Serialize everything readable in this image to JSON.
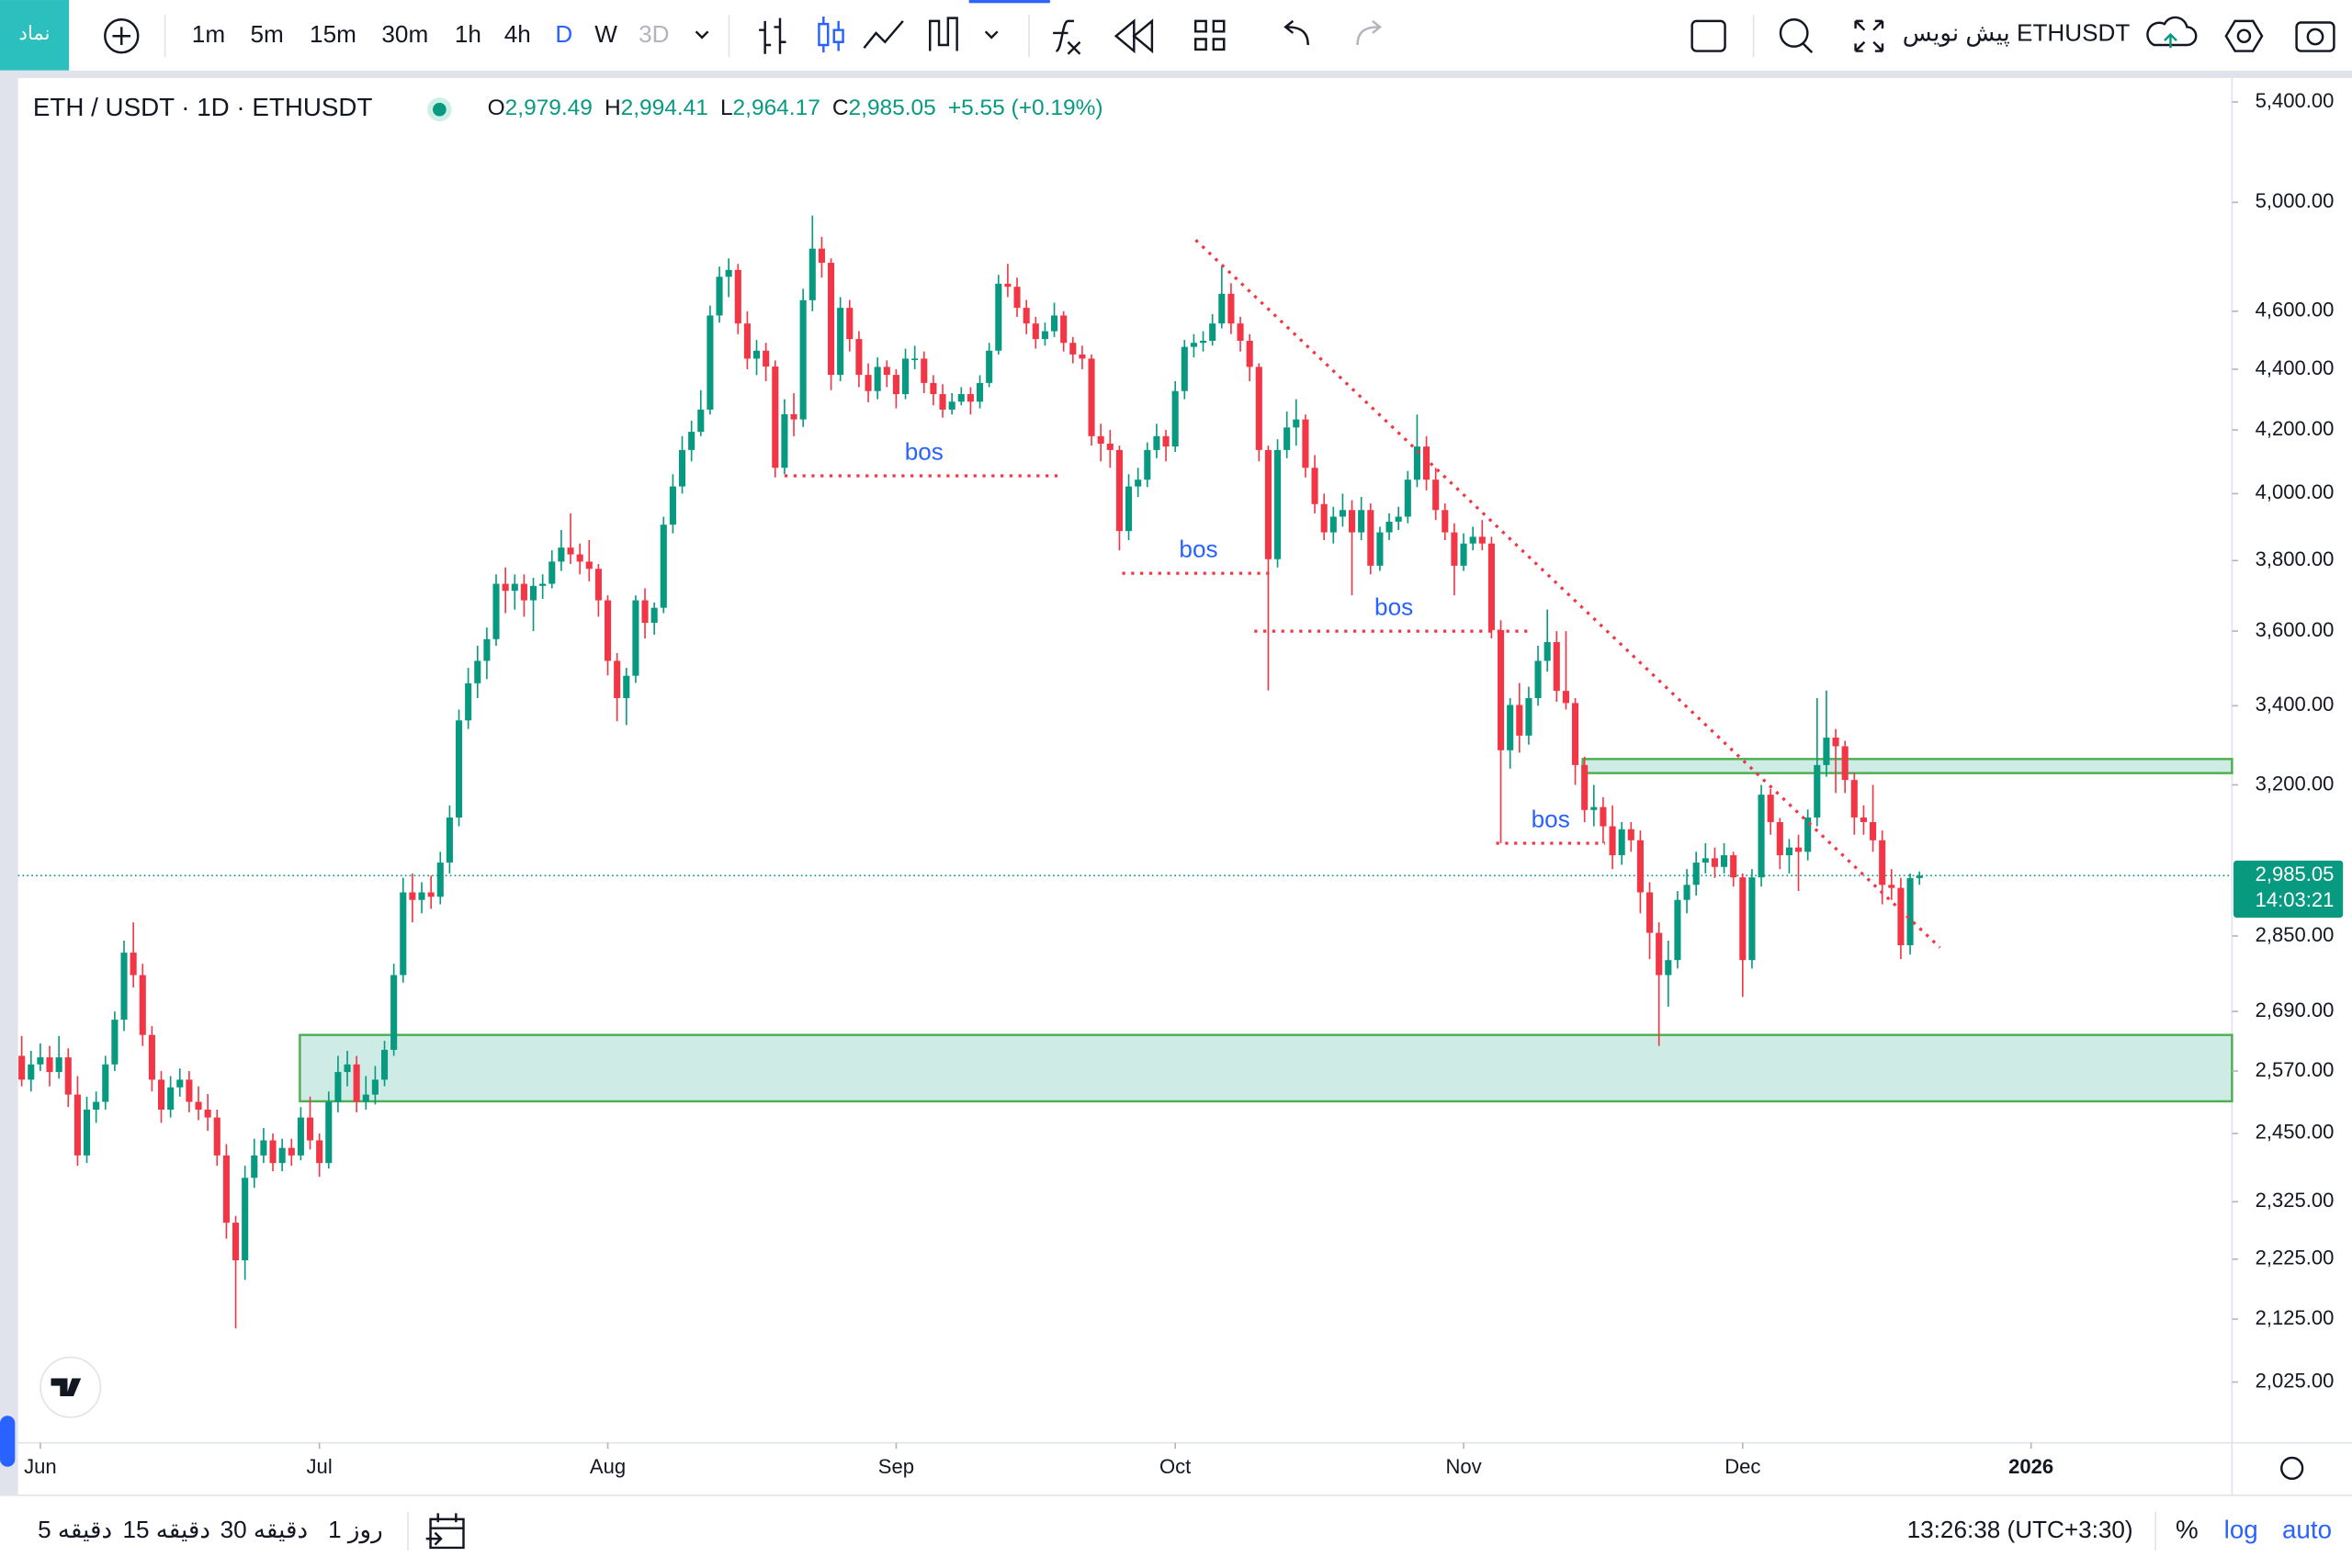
{
  "toolbar": {
    "symbol_button": "نماد",
    "intervals": [
      "1m",
      "5m",
      "15m",
      "30m",
      "1h",
      "4h",
      "D",
      "W",
      "3D"
    ],
    "draft": "پیش نویس ETHUSDT"
  },
  "bottom_bar": {
    "ranges": [
      "5 دقیقه",
      "15 دقیقه",
      "30 دقیقه",
      "1 روز"
    ],
    "clock": "13:26:38 (UTC+3:30)",
    "percent": "%",
    "log": "log",
    "auto": "auto"
  },
  "chart_data": {
    "type": "candlestick",
    "title": "ETH / USDT · 1D · ETHUSDT",
    "ohlc_keys": [
      "O",
      "H",
      "L",
      "C"
    ],
    "ohlc_labels": [
      "2,979.49",
      "2,994.41",
      "2,964.17",
      "2,985.05"
    ],
    "change": "+5.55 (+0.19%)",
    "last_price": 2985.05,
    "last_price_label": "2,985.05",
    "countdown": "14:03:21",
    "up_color": "#089981",
    "down_color": "#f23645",
    "log_scale": true,
    "grid": false,
    "ylim": [
      1933,
      5500
    ],
    "xlim": [
      -0.4,
      237.6
    ],
    "yticks": [
      {
        "value": 2025,
        "label": "2,025.00"
      },
      {
        "value": 2125,
        "label": "2,125.00"
      },
      {
        "value": 2225,
        "label": "2,225.00"
      },
      {
        "value": 2325,
        "label": "2,325.00"
      },
      {
        "value": 2450,
        "label": "2,450.00"
      },
      {
        "value": 2570,
        "label": "2,570.00"
      },
      {
        "value": 2690,
        "label": "2,690.00"
      },
      {
        "value": 2850,
        "label": "2,850.00"
      },
      {
        "value": 3200,
        "label": "3,200.00"
      },
      {
        "value": 3400,
        "label": "3,400.00"
      },
      {
        "value": 3600,
        "label": "3,600.00"
      },
      {
        "value": 3800,
        "label": "3,800.00"
      },
      {
        "value": 4000,
        "label": "4,000.00"
      },
      {
        "value": 4200,
        "label": "4,200.00"
      },
      {
        "value": 4400,
        "label": "4,400.00"
      },
      {
        "value": 4600,
        "label": "4,600.00"
      },
      {
        "value": 5000,
        "label": "5,000.00"
      },
      {
        "value": 5400,
        "label": "5,400.00"
      }
    ],
    "xticks": [
      {
        "value": 2,
        "label": "Jun"
      },
      {
        "value": 32,
        "label": "Jul"
      },
      {
        "value": 63,
        "label": "Aug"
      },
      {
        "value": 94,
        "label": "Sep"
      },
      {
        "value": 124,
        "label": "Oct"
      },
      {
        "value": 155,
        "label": "Nov"
      },
      {
        "value": 185,
        "label": "Dec"
      },
      {
        "value": 216,
        "label": "2026"
      }
    ],
    "zones": [
      {
        "x0": 29.9,
        "top": 2642,
        "bottom": 2511
      },
      {
        "x0": 167.8,
        "top": 3264,
        "bottom": 3229
      }
    ],
    "trendline": {
      "x": [
        126.2,
        206.2
      ],
      "y": [
        4858,
        2825
      ]
    },
    "bos": [
      {
        "text": "bos",
        "price": 4055,
        "x0": 82,
        "x1": 112
      },
      {
        "text": "bos",
        "price": 3763,
        "x0": 118.3,
        "x1": 134.7
      },
      {
        "text": "bos",
        "price": 3600,
        "x0": 132.5,
        "x1": 162.5
      },
      {
        "text": "bos",
        "price": 3060,
        "x0": 158.5,
        "x1": 170.2
      }
    ],
    "candles": [
      [
        2600,
        2640,
        2540,
        2553
      ],
      [
        2553,
        2610,
        2530,
        2583
      ],
      [
        2583,
        2625,
        2570,
        2597
      ],
      [
        2597,
        2620,
        2540,
        2568
      ],
      [
        2568,
        2640,
        2555,
        2597
      ],
      [
        2597,
        2615,
        2500,
        2524
      ],
      [
        2524,
        2560,
        2390,
        2409
      ],
      [
        2409,
        2520,
        2395,
        2495
      ],
      [
        2495,
        2530,
        2470,
        2510
      ],
      [
        2510,
        2600,
        2495,
        2583
      ],
      [
        2583,
        2690,
        2570,
        2673
      ],
      [
        2673,
        2840,
        2650,
        2814
      ],
      [
        2814,
        2880,
        2740,
        2766
      ],
      [
        2766,
        2790,
        2620,
        2642
      ],
      [
        2642,
        2660,
        2530,
        2553
      ],
      [
        2553,
        2570,
        2470,
        2495
      ],
      [
        2495,
        2560,
        2480,
        2538
      ],
      [
        2538,
        2575,
        2520,
        2553
      ],
      [
        2553,
        2570,
        2490,
        2510
      ],
      [
        2510,
        2540,
        2475,
        2495
      ],
      [
        2495,
        2525,
        2455,
        2480
      ],
      [
        2480,
        2495,
        2390,
        2409
      ],
      [
        2409,
        2430,
        2260,
        2288
      ],
      [
        2288,
        2300,
        2110,
        2223
      ],
      [
        2223,
        2390,
        2190,
        2368
      ],
      [
        2368,
        2440,
        2350,
        2409
      ],
      [
        2409,
        2460,
        2395,
        2437
      ],
      [
        2437,
        2450,
        2380,
        2395
      ],
      [
        2395,
        2440,
        2380,
        2423
      ],
      [
        2423,
        2440,
        2390,
        2409
      ],
      [
        2409,
        2500,
        2400,
        2480
      ],
      [
        2480,
        2520,
        2420,
        2437
      ],
      [
        2437,
        2450,
        2370,
        2395
      ],
      [
        2395,
        2530,
        2385,
        2510
      ],
      [
        2510,
        2600,
        2490,
        2568
      ],
      [
        2568,
        2610,
        2540,
        2583
      ],
      [
        2583,
        2600,
        2490,
        2510
      ],
      [
        2510,
        2560,
        2495,
        2524
      ],
      [
        2524,
        2580,
        2505,
        2553
      ],
      [
        2553,
        2630,
        2540,
        2612
      ],
      [
        2612,
        2790,
        2600,
        2766
      ],
      [
        2766,
        2980,
        2750,
        2947
      ],
      [
        2947,
        2990,
        2880,
        2930
      ],
      [
        2930,
        2970,
        2900,
        2947
      ],
      [
        2947,
        2985,
        2910,
        2937
      ],
      [
        2937,
        3040,
        2920,
        3015
      ],
      [
        3015,
        3150,
        2990,
        3121
      ],
      [
        3121,
        3390,
        3100,
        3362
      ],
      [
        3362,
        3500,
        3340,
        3459
      ],
      [
        3459,
        3560,
        3420,
        3519
      ],
      [
        3519,
        3610,
        3470,
        3578
      ],
      [
        3578,
        3760,
        3560,
        3733
      ],
      [
        3733,
        3780,
        3650,
        3713
      ],
      [
        3713,
        3760,
        3660,
        3733
      ],
      [
        3733,
        3760,
        3640,
        3686
      ],
      [
        3686,
        3750,
        3600,
        3727
      ],
      [
        3727,
        3760,
        3690,
        3733
      ],
      [
        3733,
        3830,
        3720,
        3797
      ],
      [
        3797,
        3890,
        3770,
        3838
      ],
      [
        3838,
        3940,
        3790,
        3818
      ],
      [
        3818,
        3850,
        3760,
        3797
      ],
      [
        3797,
        3860,
        3740,
        3776
      ],
      [
        3776,
        3790,
        3640,
        3686
      ],
      [
        3686,
        3700,
        3480,
        3519
      ],
      [
        3519,
        3540,
        3360,
        3420
      ],
      [
        3420,
        3500,
        3350,
        3479
      ],
      [
        3479,
        3700,
        3460,
        3686
      ],
      [
        3686,
        3720,
        3580,
        3623
      ],
      [
        3623,
        3680,
        3590,
        3665
      ],
      [
        3665,
        3930,
        3650,
        3906
      ],
      [
        3906,
        4060,
        3880,
        4022
      ],
      [
        4022,
        4180,
        4000,
        4136
      ],
      [
        4136,
        4230,
        4100,
        4194
      ],
      [
        4194,
        4330,
        4180,
        4266
      ],
      [
        4266,
        4620,
        4250,
        4585
      ],
      [
        4585,
        4760,
        4560,
        4723
      ],
      [
        4723,
        4790,
        4650,
        4748
      ],
      [
        4748,
        4770,
        4520,
        4557
      ],
      [
        4557,
        4600,
        4400,
        4436
      ],
      [
        4436,
        4500,
        4380,
        4463
      ],
      [
        4463,
        4490,
        4360,
        4409
      ],
      [
        4409,
        4430,
        4050,
        4080
      ],
      [
        4080,
        4300,
        4060,
        4251
      ],
      [
        4251,
        4320,
        4180,
        4234
      ],
      [
        4234,
        4680,
        4210,
        4639
      ],
      [
        4639,
        4950,
        4600,
        4826
      ],
      [
        4826,
        4870,
        4720,
        4774
      ],
      [
        4774,
        4790,
        4330,
        4381
      ],
      [
        4381,
        4650,
        4360,
        4612
      ],
      [
        4612,
        4640,
        4460,
        4503
      ],
      [
        4503,
        4530,
        4340,
        4381
      ],
      [
        4381,
        4420,
        4290,
        4327
      ],
      [
        4327,
        4440,
        4300,
        4408
      ],
      [
        4408,
        4430,
        4340,
        4381
      ],
      [
        4381,
        4400,
        4270,
        4317
      ],
      [
        4317,
        4470,
        4300,
        4436
      ],
      [
        4436,
        4480,
        4400,
        4436
      ],
      [
        4436,
        4460,
        4320,
        4354
      ],
      [
        4354,
        4380,
        4280,
        4317
      ],
      [
        4317,
        4350,
        4240,
        4266
      ],
      [
        4266,
        4320,
        4250,
        4292
      ],
      [
        4292,
        4340,
        4280,
        4317
      ],
      [
        4317,
        4340,
        4250,
        4292
      ],
      [
        4292,
        4380,
        4270,
        4354
      ],
      [
        4354,
        4490,
        4340,
        4463
      ],
      [
        4463,
        4730,
        4450,
        4698
      ],
      [
        4698,
        4770,
        4650,
        4687
      ],
      [
        4687,
        4720,
        4580,
        4612
      ],
      [
        4612,
        4640,
        4520,
        4557
      ],
      [
        4557,
        4580,
        4470,
        4503
      ],
      [
        4503,
        4560,
        4480,
        4530
      ],
      [
        4530,
        4630,
        4510,
        4585
      ],
      [
        4585,
        4600,
        4460,
        4490
      ],
      [
        4490,
        4510,
        4420,
        4450
      ],
      [
        4450,
        4480,
        4400,
        4436
      ],
      [
        4436,
        4450,
        4150,
        4180
      ],
      [
        4180,
        4220,
        4100,
        4156
      ],
      [
        4156,
        4200,
        4080,
        4136
      ],
      [
        4136,
        4150,
        3830,
        3887
      ],
      [
        3887,
        4060,
        3860,
        4022
      ],
      [
        4022,
        4080,
        3990,
        4043
      ],
      [
        4043,
        4160,
        4020,
        4136
      ],
      [
        4136,
        4220,
        4110,
        4180
      ],
      [
        4180,
        4200,
        4100,
        4147
      ],
      [
        4147,
        4360,
        4130,
        4327
      ],
      [
        4327,
        4500,
        4300,
        4476
      ],
      [
        4476,
        4520,
        4440,
        4490
      ],
      [
        4490,
        4530,
        4460,
        4497
      ],
      [
        4497,
        4590,
        4480,
        4557
      ],
      [
        4557,
        4760,
        4540,
        4662
      ],
      [
        4662,
        4700,
        4520,
        4557
      ],
      [
        4557,
        4580,
        4460,
        4497
      ],
      [
        4497,
        4520,
        4360,
        4408
      ],
      [
        4408,
        4420,
        4100,
        4136
      ],
      [
        4136,
        4150,
        3440,
        3804
      ],
      [
        3804,
        4170,
        3780,
        4136
      ],
      [
        4136,
        4260,
        4110,
        4208
      ],
      [
        4208,
        4300,
        4150,
        4234
      ],
      [
        4234,
        4250,
        4050,
        4080
      ],
      [
        4080,
        4120,
        3940,
        3968
      ],
      [
        3968,
        4000,
        3860,
        3883
      ],
      [
        3883,
        3960,
        3850,
        3930
      ],
      [
        3930,
        4000,
        3900,
        3950
      ],
      [
        3950,
        3980,
        3700,
        3883
      ],
      [
        3883,
        3990,
        3860,
        3950
      ],
      [
        3950,
        3970,
        3760,
        3785
      ],
      [
        3785,
        3900,
        3770,
        3883
      ],
      [
        3883,
        3940,
        3860,
        3915
      ],
      [
        3915,
        3960,
        3890,
        3930
      ],
      [
        3930,
        4070,
        3910,
        4043
      ],
      [
        4043,
        4250,
        4020,
        4147
      ],
      [
        4147,
        4180,
        4010,
        4043
      ],
      [
        4043,
        4080,
        3920,
        3950
      ],
      [
        3950,
        3970,
        3860,
        3883
      ],
      [
        3883,
        3910,
        3700,
        3785
      ],
      [
        3785,
        3880,
        3770,
        3850
      ],
      [
        3850,
        3900,
        3830,
        3870
      ],
      [
        3870,
        3920,
        3830,
        3850
      ],
      [
        3850,
        3870,
        3580,
        3603
      ],
      [
        3603,
        3630,
        3060,
        3286
      ],
      [
        3286,
        3420,
        3240,
        3402
      ],
      [
        3402,
        3460,
        3280,
        3323
      ],
      [
        3323,
        3450,
        3300,
        3420
      ],
      [
        3420,
        3560,
        3400,
        3519
      ],
      [
        3519,
        3660,
        3490,
        3570
      ],
      [
        3570,
        3600,
        3410,
        3439
      ],
      [
        3439,
        3600,
        3390,
        3407
      ],
      [
        3407,
        3420,
        3200,
        3249
      ],
      [
        3249,
        3270,
        3110,
        3139
      ],
      [
        3139,
        3200,
        3100,
        3146
      ],
      [
        3146,
        3170,
        3060,
        3100
      ],
      [
        3100,
        3150,
        3000,
        3032
      ],
      [
        3032,
        3110,
        3010,
        3093
      ],
      [
        3093,
        3110,
        3040,
        3067
      ],
      [
        3067,
        3090,
        2900,
        2947
      ],
      [
        2947,
        2970,
        2800,
        2857
      ],
      [
        2857,
        2880,
        2620,
        2766
      ],
      [
        2766,
        2840,
        2700,
        2798
      ],
      [
        2798,
        2950,
        2780,
        2930
      ],
      [
        2930,
        3000,
        2900,
        2964
      ],
      [
        2964,
        3040,
        2940,
        3015
      ],
      [
        3015,
        3060,
        2990,
        3025
      ],
      [
        3025,
        3050,
        2980,
        3005
      ],
      [
        3005,
        3060,
        2990,
        3032
      ],
      [
        3032,
        3040,
        2960,
        2981
      ],
      [
        2981,
        2990,
        2720,
        2798
      ],
      [
        2798,
        3000,
        2780,
        2981
      ],
      [
        2981,
        3200,
        2960,
        3176
      ],
      [
        3176,
        3190,
        3080,
        3110
      ],
      [
        3110,
        3120,
        3000,
        3032
      ],
      [
        3032,
        3070,
        2990,
        3050
      ],
      [
        3050,
        3080,
        2950,
        3040
      ],
      [
        3040,
        3140,
        3020,
        3121
      ],
      [
        3121,
        3420,
        3100,
        3249
      ],
      [
        3249,
        3440,
        3220,
        3318
      ],
      [
        3318,
        3340,
        3180,
        3296
      ],
      [
        3296,
        3310,
        3180,
        3212
      ],
      [
        3212,
        3230,
        3080,
        3121
      ],
      [
        3121,
        3150,
        3080,
        3110
      ],
      [
        3110,
        3200,
        3040,
        3067
      ],
      [
        3067,
        3090,
        2920,
        2964
      ],
      [
        2964,
        3000,
        2930,
        2957
      ],
      [
        2957,
        2980,
        2800,
        2830
      ],
      [
        2830,
        2990,
        2810,
        2979.49
      ],
      [
        2979.49,
        2994.41,
        2964.17,
        2985.05
      ]
    ]
  }
}
